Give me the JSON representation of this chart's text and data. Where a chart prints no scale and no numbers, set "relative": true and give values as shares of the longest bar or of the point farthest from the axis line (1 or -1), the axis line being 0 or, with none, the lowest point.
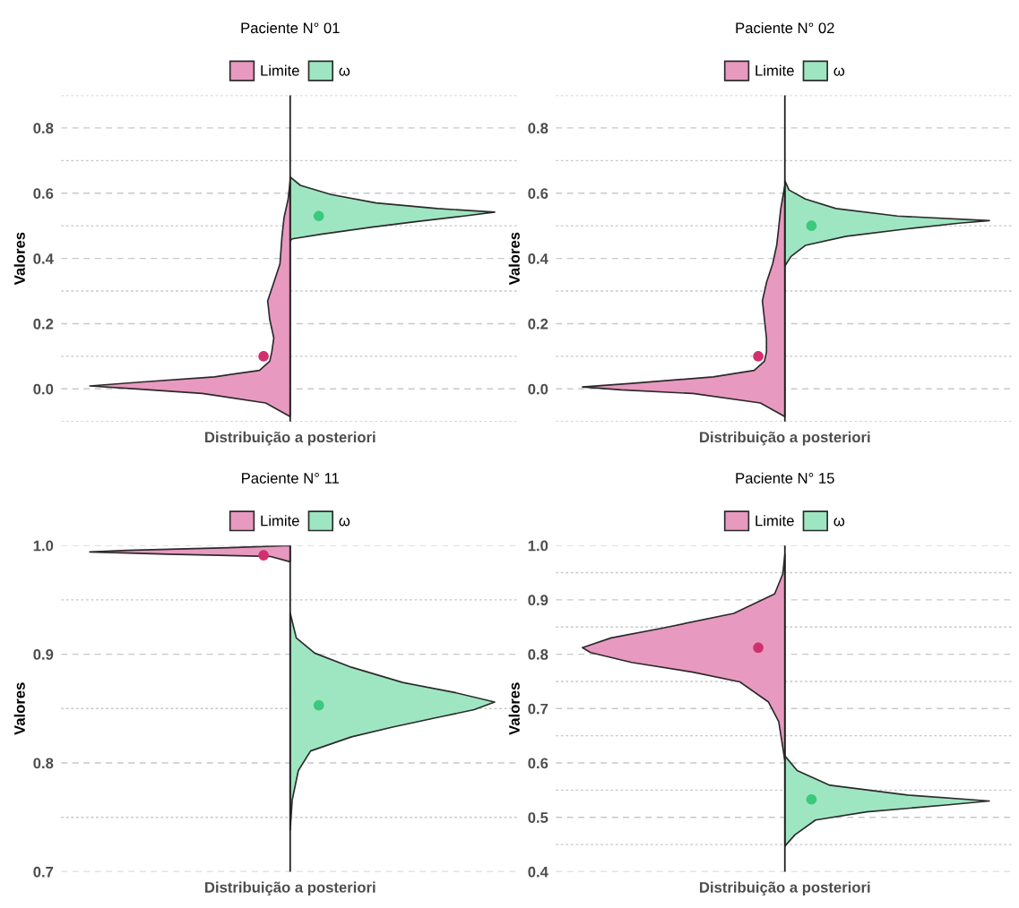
{
  "chart_data": [
    {
      "type": "area",
      "orientation": "horizontal",
      "relative": true,
      "title": "Paciente N° 01",
      "xlabel": "Distribuição a posteriori",
      "ylabel": "Valores",
      "legend": "top",
      "grid": "y",
      "ylim": [
        -0.1,
        0.9
      ],
      "yticks": [
        {
          "value": -0.1,
          "label": null
        },
        {
          "value": 0,
          "label": "0.0"
        },
        {
          "value": 0.1,
          "label": null
        },
        0.2,
        {
          "value": 0.3,
          "label": null
        },
        0.4,
        {
          "value": 0.5,
          "label": null
        },
        0.6,
        {
          "value": 0.7,
          "label": null
        },
        0.8,
        {
          "value": 0.9,
          "label": null
        }
      ],
      "ref_lines": [
        {
          "axis": "x",
          "value": 0,
          "color": "#222222"
        }
      ],
      "series": [
        {
          "name": "Limite",
          "color": "#e899bf",
          "x": [
            -0.085,
            -0.043,
            -0.014,
            0.0,
            0.009,
            0.02,
            0.037,
            0.057,
            0.085,
            0.113,
            0.156,
            0.213,
            0.27,
            0.326,
            0.383,
            0.468,
            0.525,
            0.582,
            0.638
          ],
          "values": [
            0,
            -0.12,
            -0.43,
            -0.75,
            -0.98,
            -0.75,
            -0.37,
            -0.15,
            -0.1,
            -0.09,
            -0.08,
            -0.1,
            -0.11,
            -0.08,
            -0.05,
            -0.04,
            -0.03,
            -0.01,
            0
          ]
        },
        {
          "name": "ω",
          "color": "#9ee6c1",
          "x": [
            0.454,
            0.46,
            0.474,
            0.496,
            0.513,
            0.53,
            0.542,
            0.553,
            0.57,
            0.596,
            0.624,
            0.65
          ],
          "values": [
            0,
            0.01,
            0.15,
            0.4,
            0.62,
            0.85,
            1.0,
            0.72,
            0.42,
            0.2,
            0.05,
            0
          ]
        },
        {
          "type": "scatter",
          "color": "#d1306f",
          "x": [
            0.1
          ],
          "values": [
            -0.13
          ]
        },
        {
          "type": "scatter",
          "color": "#3cc97d",
          "x": [
            0.53
          ],
          "values": [
            0.14
          ]
        }
      ]
    },
    {
      "type": "area",
      "orientation": "horizontal",
      "relative": true,
      "title": "Paciente N° 02",
      "xlabel": "Distribuição a posteriori",
      "ylabel": "Valores",
      "legend": "top",
      "grid": "y",
      "ylim": [
        -0.1,
        0.9
      ],
      "yticks": [
        {
          "value": -0.1,
          "label": null
        },
        {
          "value": 0,
          "label": "0.0"
        },
        {
          "value": 0.1,
          "label": null
        },
        0.2,
        {
          "value": 0.3,
          "label": null
        },
        0.4,
        {
          "value": 0.5,
          "label": null
        },
        0.6,
        {
          "value": 0.7,
          "label": null
        },
        0.8,
        {
          "value": 0.9,
          "label": null
        }
      ],
      "ref_lines": [
        {
          "axis": "x",
          "value": 0,
          "color": "#222222"
        }
      ],
      "series": [
        {
          "name": "Limite",
          "color": "#e899bf",
          "x": [
            -0.085,
            -0.043,
            -0.014,
            -0.003,
            0.006,
            0.017,
            0.037,
            0.057,
            0.085,
            0.113,
            0.156,
            0.213,
            0.27,
            0.326,
            0.383,
            0.44,
            0.496,
            0.553,
            0.624
          ],
          "values": [
            0,
            -0.12,
            -0.45,
            -0.8,
            -0.99,
            -0.75,
            -0.35,
            -0.15,
            -0.1,
            -0.09,
            -0.09,
            -0.1,
            -0.11,
            -0.09,
            -0.06,
            -0.04,
            -0.03,
            -0.02,
            0
          ]
        },
        {
          "name": "ω",
          "color": "#9ee6c1",
          "x": [
            0.377,
            0.406,
            0.44,
            0.468,
            0.491,
            0.508,
            0.516,
            0.53,
            0.553,
            0.582,
            0.61,
            0.638
          ],
          "values": [
            0,
            0.03,
            0.1,
            0.3,
            0.6,
            0.85,
            1.0,
            0.55,
            0.25,
            0.1,
            0.02,
            0
          ]
        },
        {
          "type": "scatter",
          "color": "#d1306f",
          "x": [
            0.1
          ],
          "values": [
            -0.13
          ]
        },
        {
          "type": "scatter",
          "color": "#3cc97d",
          "x": [
            0.5
          ],
          "values": [
            0.13
          ]
        }
      ]
    },
    {
      "type": "area",
      "orientation": "horizontal",
      "relative": true,
      "title": "Paciente N° 11",
      "xlabel": "Distribuição a posteriori",
      "ylabel": "Valores",
      "legend": "top",
      "grid": "y",
      "ylim": [
        0.7,
        1.0
      ],
      "yticks": [
        0.7,
        {
          "value": 0.75,
          "label": null
        },
        0.8,
        {
          "value": 0.85,
          "label": null
        },
        0.9,
        {
          "value": 0.95,
          "label": null
        },
        {
          "value": 1,
          "label": "1.0"
        }
      ],
      "ref_lines": [
        {
          "axis": "x",
          "value": 0,
          "color": "#222222"
        }
      ],
      "series": [
        {
          "name": "Limite",
          "color": "#e899bf",
          "x": [
            0.985,
            0.99,
            0.992,
            0.994,
            0.9955,
            0.998,
            1.0
          ],
          "values": [
            0,
            -0.1,
            -0.6,
            -0.98,
            -0.8,
            -0.3,
            0
          ]
        },
        {
          "name": "ω",
          "color": "#9ee6c1",
          "x": [
            0.738,
            0.766,
            0.793,
            0.811,
            0.824,
            0.833,
            0.843,
            0.849,
            0.856,
            0.865,
            0.874,
            0.888,
            0.901,
            0.915,
            0.938
          ],
          "values": [
            0,
            0.01,
            0.04,
            0.1,
            0.3,
            0.5,
            0.75,
            0.9,
            1.0,
            0.8,
            0.55,
            0.3,
            0.12,
            0.03,
            0
          ]
        },
        {
          "type": "scatter",
          "color": "#d1306f",
          "x": [
            0.991
          ],
          "values": [
            -0.13
          ]
        },
        {
          "type": "scatter",
          "color": "#3cc97d",
          "x": [
            0.853
          ],
          "values": [
            0.14
          ]
        }
      ]
    },
    {
      "type": "area",
      "orientation": "horizontal",
      "relative": true,
      "title": "Paciente N° 15",
      "xlabel": "Distribuição a posteriori",
      "ylabel": "Valores",
      "legend": "top",
      "grid": "y",
      "ylim": [
        0.4,
        1.0
      ],
      "yticks": [
        0.4,
        {
          "value": 0.45,
          "label": null
        },
        0.5,
        {
          "value": 0.55,
          "label": null
        },
        0.6,
        {
          "value": 0.65,
          "label": null
        },
        0.7,
        {
          "value": 0.75,
          "label": null
        },
        0.8,
        {
          "value": 0.85,
          "label": null
        },
        0.9,
        {
          "value": 0.95,
          "label": null
        },
        {
          "value": 1,
          "label": "1.0"
        }
      ],
      "ref_lines": [
        {
          "axis": "x",
          "value": 0,
          "color": "#222222"
        }
      ],
      "series": [
        {
          "name": "Limite",
          "color": "#e899bf",
          "x": [
            0.604,
            0.676,
            0.712,
            0.749,
            0.767,
            0.785,
            0.803,
            0.812,
            0.83,
            0.848,
            0.875,
            0.911,
            0.948,
            0.984
          ],
          "values": [
            0,
            -0.03,
            -0.08,
            -0.22,
            -0.45,
            -0.75,
            -0.95,
            -0.99,
            -0.85,
            -0.6,
            -0.25,
            -0.05,
            -0.01,
            0
          ]
        },
        {
          "name": "ω",
          "color": "#9ee6c1",
          "x": [
            0.447,
            0.468,
            0.495,
            0.51,
            0.523,
            0.53,
            0.541,
            0.559,
            0.586,
            0.613
          ],
          "values": [
            0,
            0.05,
            0.15,
            0.4,
            0.8,
            1.0,
            0.6,
            0.22,
            0.06,
            0
          ]
        },
        {
          "type": "scatter",
          "color": "#d1306f",
          "x": [
            0.812
          ],
          "values": [
            -0.13
          ]
        },
        {
          "type": "scatter",
          "color": "#3cc97d",
          "x": [
            0.533
          ],
          "values": [
            0.13
          ]
        }
      ]
    }
  ]
}
